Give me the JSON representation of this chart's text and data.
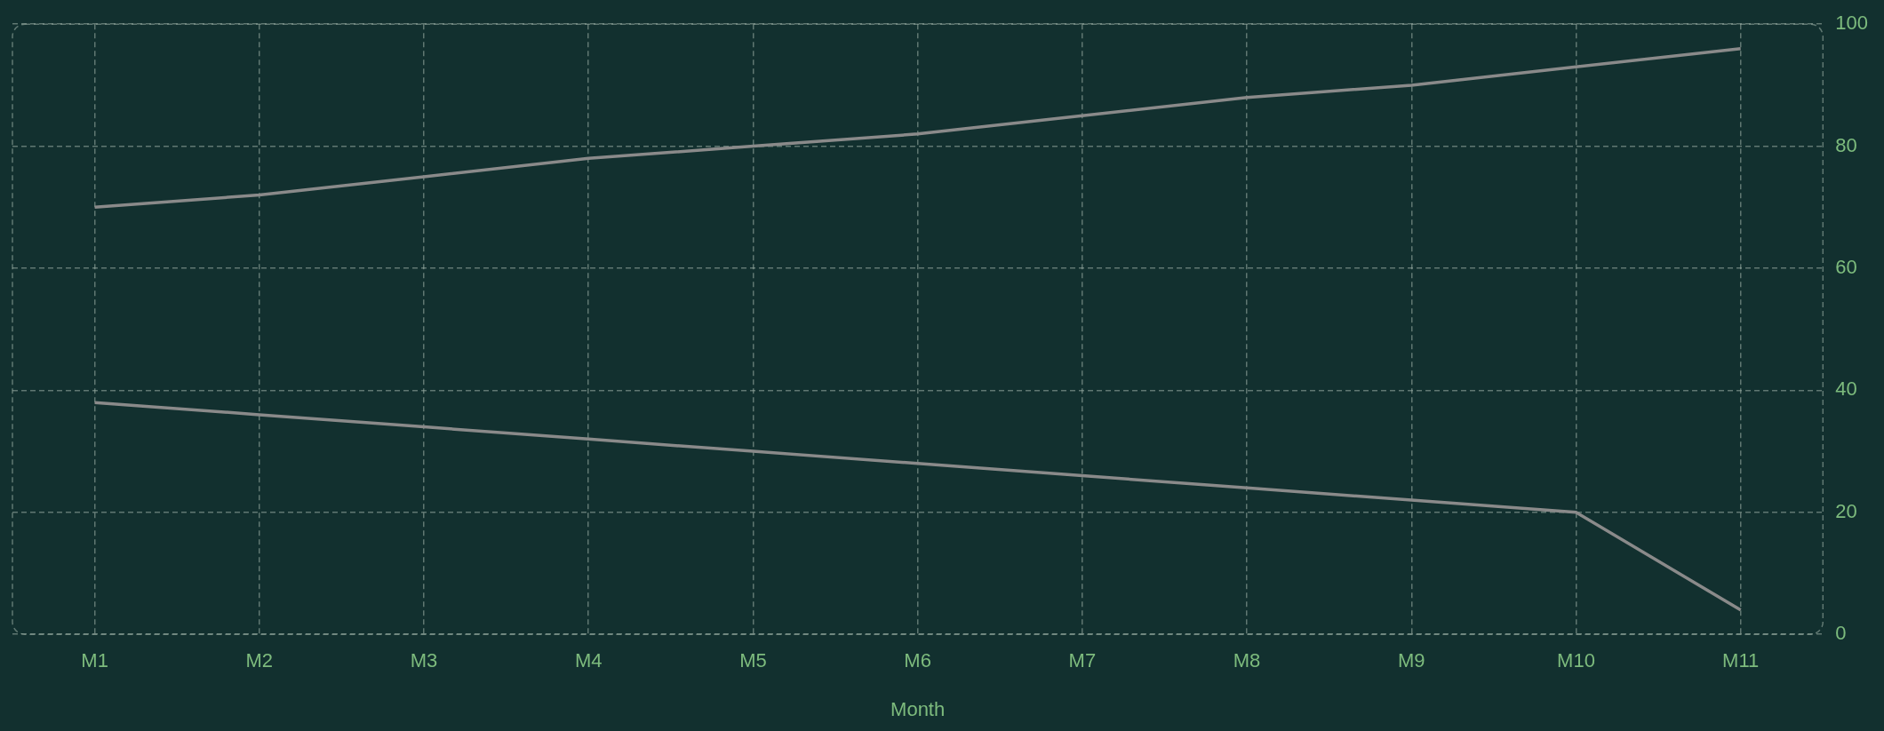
{
  "chart_data": {
    "type": "line",
    "xlabel": "Month",
    "categories": [
      "M1",
      "M2",
      "M3",
      "M4",
      "M5",
      "M6",
      "M7",
      "M8",
      "M9",
      "M10",
      "M11"
    ],
    "series": [
      {
        "color": "#8a8a8a",
        "values": [
          70,
          72,
          75,
          78,
          80,
          82,
          85,
          88,
          90,
          93,
          96
        ]
      },
      {
        "color": "#8a8a8a",
        "values": [
          38,
          36,
          34,
          32,
          30,
          28,
          26,
          24,
          22,
          20,
          4
        ]
      }
    ],
    "ylim": [
      0,
      100
    ],
    "yticks": [
      0,
      20,
      40,
      60,
      80,
      100
    ],
    "grid": true,
    "legend": false,
    "marker": "none",
    "line_style": "solid"
  }
}
